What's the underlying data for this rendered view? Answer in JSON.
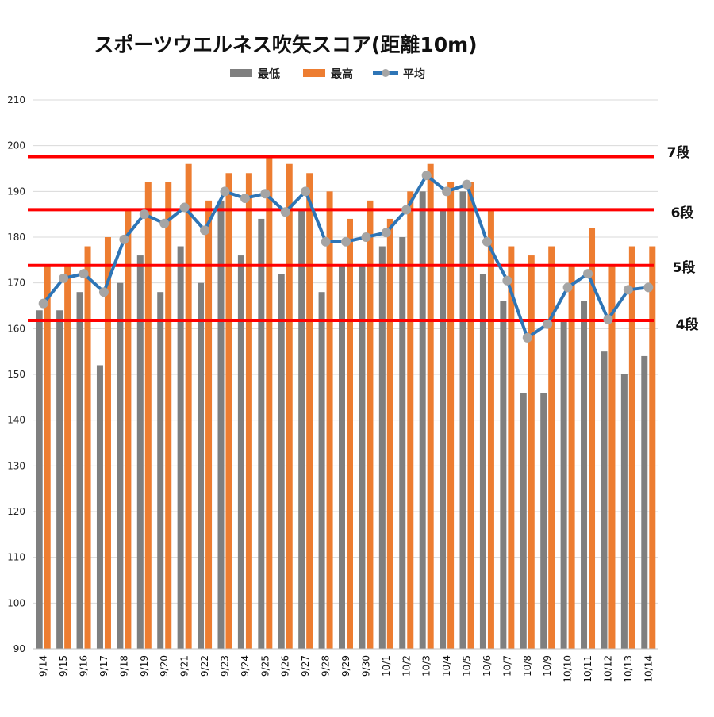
{
  "chart_data": {
    "type": "bar",
    "title": "スポーツウエルネス吹矢スコア(距離10m)",
    "xlabel": "",
    "ylabel": "",
    "ylim": [
      90,
      210
    ],
    "yticks": [
      90,
      100,
      110,
      120,
      130,
      140,
      150,
      160,
      170,
      180,
      190,
      200,
      210
    ],
    "grid": true,
    "legend_position": "top-center",
    "categories": [
      "9/14",
      "9/15",
      "9/16",
      "9/17",
      "9/18",
      "9/19",
      "9/20",
      "9/21",
      "9/22",
      "9/23",
      "9/24",
      "9/25",
      "9/26",
      "9/27",
      "9/28",
      "9/29",
      "9/30",
      "10/1",
      "10/2",
      "10/3",
      "10/4",
      "10/5",
      "10/6",
      "10/7",
      "10/8",
      "10/9",
      "10/10",
      "10/11",
      "10/12",
      "10/13",
      "10/14"
    ],
    "series": [
      {
        "name": "最低",
        "type": "bar",
        "color": "#7f7f7f",
        "values": [
          164,
          164,
          168,
          152,
          170,
          176,
          168,
          178,
          170,
          188,
          176,
          184,
          172,
          186,
          168,
          174,
          174,
          178,
          180,
          190,
          186,
          190,
          172,
          166,
          146,
          146,
          162,
          166,
          155,
          150,
          154
        ]
      },
      {
        "name": "最高",
        "type": "bar",
        "color": "#ed7d31",
        "values": [
          174,
          174,
          178,
          180,
          186,
          192,
          192,
          196,
          188,
          194,
          194,
          198,
          196,
          194,
          190,
          184,
          188,
          184,
          190,
          196,
          192,
          192,
          186,
          178,
          176,
          178,
          174,
          182,
          174,
          178,
          178
        ]
      },
      {
        "name": "平均",
        "type": "line",
        "color": "#2e75b6",
        "marker_color": "#a5a5a5",
        "values": [
          165.5,
          171.0,
          172.0,
          168.0,
          179.5,
          185.0,
          183.0,
          186.5,
          181.5,
          190.0,
          188.5,
          189.5,
          185.5,
          190.0,
          179.0,
          179.0,
          180.0,
          181.0,
          186.0,
          193.5,
          190.0,
          191.5,
          179.0,
          170.5,
          158.0,
          161.0,
          169.0,
          172.0,
          162.0,
          168.5,
          169.0
        ]
      }
    ],
    "reference_lines": [
      {
        "label": "4段",
        "value": 161.8,
        "color": "#ff0000"
      },
      {
        "label": "5段",
        "value": 173.8,
        "color": "#ff0000"
      },
      {
        "label": "6段",
        "value": 186.0,
        "color": "#ff0000"
      },
      {
        "label": "7段",
        "value": 197.6,
        "color": "#ff0000"
      }
    ]
  }
}
